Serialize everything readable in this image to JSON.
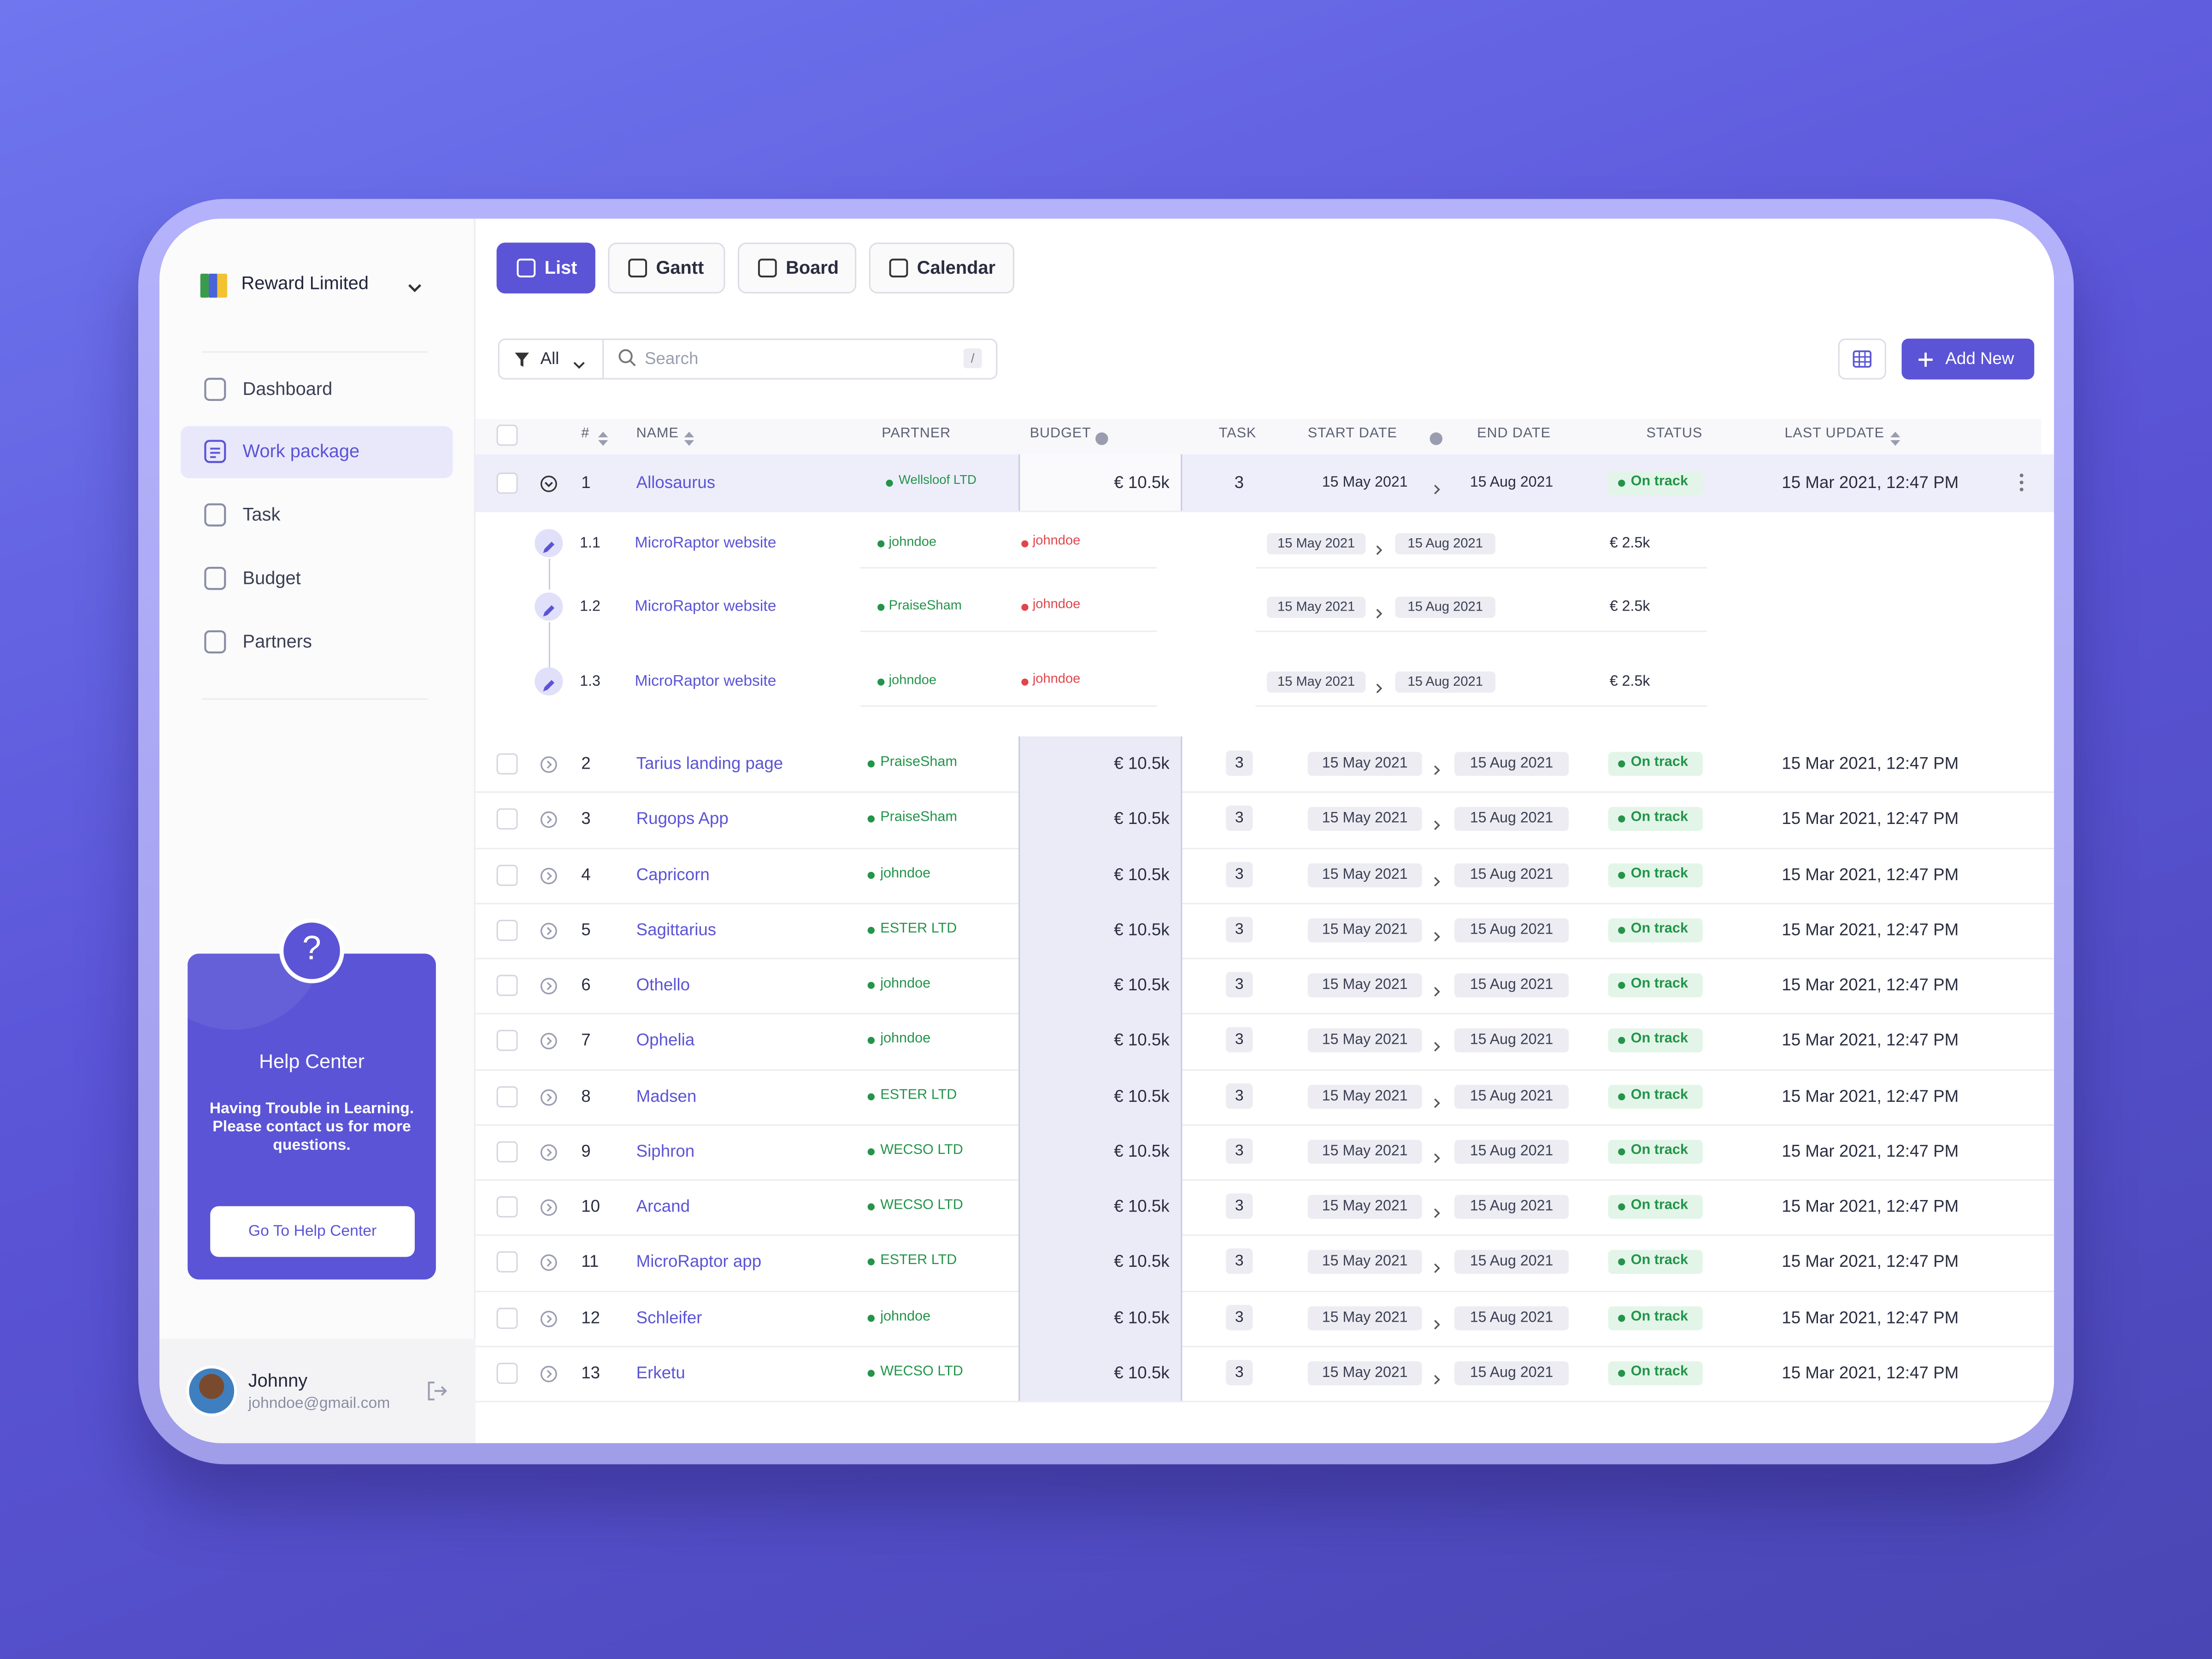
{
  "sidebar": {
    "workspace": "Reward Limited",
    "nav": [
      "Dashboard",
      "Work package",
      "Task",
      "Budget",
      "Partners"
    ],
    "help": {
      "icon": "?",
      "title": "Help Center",
      "text": "Having Trouble in Learning. Please contact us for more questions.",
      "button": "Go To Help Center"
    },
    "user": {
      "name": "Johnny",
      "email": "johndoe@gmail.com"
    }
  },
  "toolbar": {
    "tabs": [
      "List",
      "Gantt",
      "Board",
      "Calendar"
    ],
    "filter": "All",
    "search": "Search",
    "shortcut": "/",
    "add": "Add New"
  },
  "table": {
    "headers": [
      "#",
      "NAME",
      "PARTNER",
      "BUDGET",
      "TASK",
      "START DATE",
      "END DATE",
      "STATUS",
      "LAST UPDATE"
    ],
    "rows": [
      {
        "id": "1",
        "name": "Allosaurus",
        "partner": "Wellsloof LTD",
        "budget": "€ 10.5k",
        "task": "3",
        "start": "15 May 2021",
        "end": "15 Aug 2021",
        "status": "On track",
        "updated": "15 Mar 2021, 12:47 PM",
        "subtasks": [
          {
            "id": "1.1",
            "name": "MicroRaptor website",
            "partner": "johndoe",
            "owner": "johndoe",
            "start": "15 May 2021",
            "end": "15 Aug 2021",
            "budget": "€ 2.5k"
          },
          {
            "id": "1.2",
            "name": "MicroRaptor website",
            "partner": "PraiseSham",
            "owner": "johndoe",
            "start": "15 May 2021",
            "end": "15 Aug 2021",
            "budget": "€ 2.5k"
          },
          {
            "id": "1.3",
            "name": "MicroRaptor website",
            "partner": "johndoe",
            "owner": "johndoe",
            "start": "15 May 2021",
            "end": "15 Aug 2021",
            "budget": "€ 2.5k"
          }
        ]
      },
      {
        "id": "2",
        "name": "Tarius landing page",
        "partner": "PraiseSham",
        "budget": "€ 10.5k",
        "task": "3",
        "start": "15 May 2021",
        "end": "15 Aug 2021",
        "status": "On track",
        "updated": "15 Mar 2021, 12:47 PM"
      },
      {
        "id": "3",
        "name": "Rugops App",
        "partner": "PraiseSham",
        "budget": "€ 10.5k",
        "task": "3",
        "start": "15 May 2021",
        "end": "15 Aug 2021",
        "status": "On track",
        "updated": "15 Mar 2021, 12:47 PM"
      },
      {
        "id": "4",
        "name": "Capricorn",
        "partner": "johndoe",
        "budget": "€ 10.5k",
        "task": "3",
        "start": "15 May 2021",
        "end": "15 Aug 2021",
        "status": "On track",
        "updated": "15 Mar 2021, 12:47 PM"
      },
      {
        "id": "5",
        "name": "Sagittarius",
        "partner": "ESTER LTD",
        "budget": "€ 10.5k",
        "task": "3",
        "start": "15 May 2021",
        "end": "15 Aug 2021",
        "status": "On track",
        "updated": "15 Mar 2021, 12:47 PM"
      },
      {
        "id": "6",
        "name": "Othello",
        "partner": "johndoe",
        "budget": "€ 10.5k",
        "task": "3",
        "start": "15 May 2021",
        "end": "15 Aug 2021",
        "status": "On track",
        "updated": "15 Mar 2021, 12:47 PM"
      },
      {
        "id": "7",
        "name": "Ophelia",
        "partner": "johndoe",
        "budget": "€ 10.5k",
        "task": "3",
        "start": "15 May 2021",
        "end": "15 Aug 2021",
        "status": "On track",
        "updated": "15 Mar 2021, 12:47 PM"
      },
      {
        "id": "8",
        "name": "Madsen",
        "partner": "ESTER LTD",
        "budget": "€ 10.5k",
        "task": "3",
        "start": "15 May 2021",
        "end": "15 Aug 2021",
        "status": "On track",
        "updated": "15 Mar 2021, 12:47 PM"
      },
      {
        "id": "9",
        "name": "Siphron",
        "partner": "WECSO LTD",
        "budget": "€ 10.5k",
        "task": "3",
        "start": "15 May 2021",
        "end": "15 Aug 2021",
        "status": "On track",
        "updated": "15 Mar 2021, 12:47 PM"
      },
      {
        "id": "10",
        "name": "Arcand",
        "partner": "WECSO LTD",
        "budget": "€ 10.5k",
        "task": "3",
        "start": "15 May 2021",
        "end": "15 Aug 2021",
        "status": "On track",
        "updated": "15 Mar 2021, 12:47 PM"
      },
      {
        "id": "11",
        "name": "MicroRaptor app",
        "partner": "ESTER LTD",
        "budget": "€ 10.5k",
        "task": "3",
        "start": "15 May 2021",
        "end": "15 Aug 2021",
        "status": "On track",
        "updated": "15 Mar 2021, 12:47 PM"
      },
      {
        "id": "12",
        "name": "Schleifer",
        "partner": "johndoe",
        "budget": "€ 10.5k",
        "task": "3",
        "start": "15 May 2021",
        "end": "15 Aug 2021",
        "status": "On track",
        "updated": "15 Mar 2021, 12:47 PM"
      },
      {
        "id": "13",
        "name": "Erketu",
        "partner": "WECSO LTD",
        "budget": "€ 10.5k",
        "task": "3",
        "start": "15 May 2021",
        "end": "15 Aug 2021",
        "status": "On track",
        "updated": "15 Mar 2021, 12:47 PM"
      }
    ]
  }
}
